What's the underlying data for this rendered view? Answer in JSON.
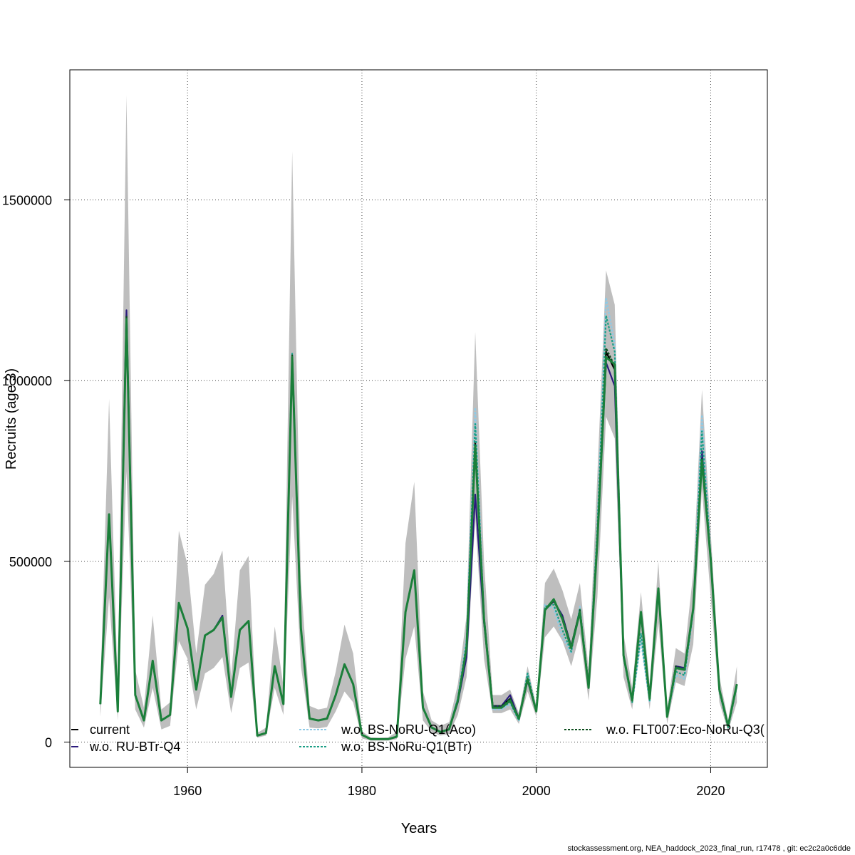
{
  "footer_text": "stockassessment.org, NEA_haddock_2023_final_run, r17478 , git: ec2c2a0c6dde",
  "chart_data": {
    "type": "line",
    "xlabel": "Years",
    "ylabel": "Recruits (age 3)",
    "xlim": [
      1946.5,
      2026.5
    ],
    "ylim": [
      -70000,
      1860000
    ],
    "xticks": [
      1960,
      1980,
      2000,
      2020
    ],
    "xtick_labels": [
      "1960",
      "1980",
      "2000",
      "2020"
    ],
    "yticks": [
      0,
      500000,
      1000000,
      1500000
    ],
    "ytick_labels": [
      "0",
      "500000",
      "1000000",
      "1500000"
    ],
    "grid": true,
    "legend_placement": "bottom",
    "x": [
      1950,
      1951,
      1952,
      1953,
      1954,
      1955,
      1956,
      1957,
      1958,
      1959,
      1960,
      1961,
      1962,
      1963,
      1964,
      1965,
      1966,
      1967,
      1968,
      1969,
      1970,
      1971,
      1972,
      1973,
      1974,
      1975,
      1976,
      1977,
      1978,
      1979,
      1980,
      1981,
      1982,
      1983,
      1984,
      1985,
      1986,
      1987,
      1988,
      1989,
      1990,
      1991,
      1992,
      1993,
      1994,
      1995,
      1996,
      1997,
      1998,
      1999,
      2000,
      2001,
      2002,
      2003,
      2004,
      2005,
      2006,
      2007,
      2008,
      2009,
      2010,
      2011,
      2012,
      2013,
      2014,
      2015,
      2016,
      2017,
      2018,
      2019,
      2020,
      2021,
      2022,
      2023
    ],
    "confidence_band": {
      "color": "#bebebe",
      "lower": [
        70000,
        400000,
        60000,
        750000,
        90000,
        40000,
        150000,
        35000,
        45000,
        280000,
        230000,
        90000,
        190000,
        205000,
        235000,
        80000,
        205000,
        220000,
        12000,
        18000,
        150000,
        75000,
        680000,
        210000,
        40000,
        38000,
        42000,
        85000,
        140000,
        110000,
        10000,
        4000,
        4000,
        4000,
        8000,
        230000,
        320000,
        60000,
        28000,
        18000,
        22000,
        75000,
        180000,
        620000,
        230000,
        80000,
        80000,
        90000,
        50000,
        140000,
        70000,
        290000,
        320000,
        280000,
        210000,
        300000,
        115000,
        400000,
        900000,
        840000,
        180000,
        90000,
        280000,
        90000,
        330000,
        50000,
        165000,
        155000,
        270000,
        700000,
        400000,
        110000,
        30000,
        110000
      ],
      "upper": [
        145000,
        950000,
        150000,
        1790000,
        200000,
        95000,
        350000,
        90000,
        110000,
        585000,
        490000,
        245000,
        435000,
        465000,
        530000,
        180000,
        475000,
        515000,
        25000,
        40000,
        320000,
        155000,
        1635000,
        450000,
        100000,
        90000,
        95000,
        195000,
        325000,
        245000,
        30000,
        13000,
        12000,
        13000,
        28000,
        550000,
        720000,
        140000,
        60000,
        45000,
        55000,
        160000,
        350000,
        1135000,
        500000,
        130000,
        130000,
        145000,
        80000,
        210000,
        100000,
        440000,
        480000,
        420000,
        340000,
        440000,
        200000,
        740000,
        1305000,
        1210000,
        300000,
        150000,
        415000,
        160000,
        500000,
        90000,
        260000,
        245000,
        470000,
        975000,
        580000,
        180000,
        60000,
        210000
      ]
    },
    "series": [
      {
        "name": "current",
        "color": "#000000",
        "dash": "solid",
        "values": [
          105000,
          630000,
          85000,
          1180000,
          130000,
          60000,
          225000,
          60000,
          75000,
          385000,
          315000,
          145000,
          295000,
          310000,
          345000,
          125000,
          310000,
          335000,
          18000,
          25000,
          210000,
          105000,
          1070000,
          315000,
          65000,
          60000,
          65000,
          130000,
          215000,
          160000,
          20000,
          8000,
          8000,
          8000,
          15000,
          360000,
          475000,
          95000,
          40000,
          28000,
          35000,
          115000,
          260000,
          830000,
          345000,
          100000,
          100000,
          120000,
          65000,
          175000,
          85000,
          365000,
          395000,
          340000,
          265000,
          365000,
          155000,
          560000,
          1080000,
          1030000,
          240000,
          115000,
          355000,
          120000,
          425000,
          70000,
          210000,
          200000,
          370000,
          790000,
          510000,
          145000,
          45000,
          160000
        ]
      },
      {
        "name": "w.o. RU-BTr-Q4",
        "color": "#2b1b7c",
        "dash": "solid",
        "values": [
          105000,
          630000,
          85000,
          1195000,
          130000,
          60000,
          225000,
          60000,
          75000,
          385000,
          315000,
          145000,
          295000,
          310000,
          350000,
          125000,
          310000,
          335000,
          18000,
          25000,
          210000,
          105000,
          1070000,
          315000,
          65000,
          60000,
          65000,
          130000,
          215000,
          160000,
          20000,
          8000,
          8000,
          8000,
          15000,
          360000,
          475000,
          95000,
          40000,
          28000,
          35000,
          110000,
          235000,
          685000,
          330000,
          100000,
          100000,
          130000,
          65000,
          170000,
          85000,
          365000,
          390000,
          350000,
          265000,
          360000,
          155000,
          555000,
          1050000,
          985000,
          235000,
          115000,
          355000,
          120000,
          425000,
          70000,
          210000,
          205000,
          370000,
          805000,
          505000,
          145000,
          45000,
          160000
        ]
      },
      {
        "name": "w.o. BS-NoRU-Q1(Aco)",
        "color": "#8ecae6",
        "dash": "dotted",
        "values": [
          105000,
          630000,
          85000,
          1175000,
          130000,
          60000,
          225000,
          60000,
          75000,
          385000,
          315000,
          145000,
          295000,
          310000,
          345000,
          125000,
          310000,
          335000,
          18000,
          25000,
          210000,
          105000,
          1075000,
          315000,
          65000,
          60000,
          65000,
          130000,
          215000,
          160000,
          20000,
          8000,
          8000,
          8000,
          15000,
          360000,
          475000,
          95000,
          40000,
          28000,
          35000,
          125000,
          290000,
          925000,
          350000,
          90000,
          90000,
          105000,
          60000,
          190000,
          85000,
          380000,
          370000,
          290000,
          245000,
          375000,
          150000,
          600000,
          1230000,
          1100000,
          235000,
          110000,
          280000,
          110000,
          420000,
          70000,
          185000,
          175000,
          360000,
          905000,
          510000,
          140000,
          40000,
          155000
        ]
      },
      {
        "name": "w.o. BS-NoRu-Q1(BTr)",
        "color": "#1a9e84",
        "dash": "dotted",
        "values": [
          105000,
          630000,
          85000,
          1175000,
          130000,
          60000,
          225000,
          60000,
          75000,
          385000,
          315000,
          145000,
          295000,
          310000,
          345000,
          125000,
          310000,
          335000,
          18000,
          25000,
          210000,
          105000,
          1075000,
          315000,
          65000,
          60000,
          65000,
          130000,
          215000,
          160000,
          20000,
          8000,
          8000,
          8000,
          15000,
          360000,
          475000,
          95000,
          40000,
          28000,
          35000,
          120000,
          275000,
          880000,
          345000,
          95000,
          95000,
          110000,
          60000,
          190000,
          85000,
          375000,
          380000,
          310000,
          250000,
          370000,
          150000,
          590000,
          1180000,
          1080000,
          235000,
          110000,
          300000,
          115000,
          420000,
          70000,
          195000,
          185000,
          365000,
          860000,
          510000,
          140000,
          40000,
          155000
        ]
      },
      {
        "name": "w.o. FLT007:Eco-NoRu-Q3(",
        "color": "#0b4d1c",
        "dash": "dotted",
        "values": [
          105000,
          630000,
          85000,
          1180000,
          130000,
          60000,
          225000,
          60000,
          75000,
          385000,
          315000,
          145000,
          295000,
          310000,
          345000,
          125000,
          310000,
          335000,
          18000,
          25000,
          210000,
          105000,
          1070000,
          315000,
          65000,
          60000,
          65000,
          130000,
          215000,
          160000,
          20000,
          8000,
          8000,
          8000,
          15000,
          360000,
          475000,
          95000,
          40000,
          28000,
          35000,
          115000,
          260000,
          825000,
          345000,
          100000,
          100000,
          120000,
          65000,
          175000,
          85000,
          365000,
          390000,
          345000,
          265000,
          365000,
          155000,
          560000,
          1090000,
          1040000,
          240000,
          115000,
          355000,
          120000,
          425000,
          70000,
          210000,
          200000,
          370000,
          785000,
          510000,
          145000,
          45000,
          160000
        ]
      },
      {
        "name": "",
        "color": "#1b7f3a",
        "dash": "solid",
        "values": [
          105000,
          630000,
          85000,
          1170000,
          130000,
          60000,
          225000,
          60000,
          75000,
          385000,
          315000,
          145000,
          295000,
          310000,
          345000,
          125000,
          310000,
          335000,
          18000,
          25000,
          210000,
          105000,
          1065000,
          315000,
          65000,
          60000,
          65000,
          130000,
          215000,
          160000,
          20000,
          8000,
          8000,
          8000,
          15000,
          360000,
          475000,
          95000,
          40000,
          28000,
          35000,
          115000,
          260000,
          820000,
          340000,
          95000,
          95000,
          115000,
          65000,
          175000,
          85000,
          365000,
          395000,
          340000,
          260000,
          360000,
          150000,
          555000,
          1065000,
          1045000,
          240000,
          115000,
          360000,
          120000,
          425000,
          70000,
          205000,
          200000,
          370000,
          780000,
          505000,
          145000,
          45000,
          160000
        ]
      }
    ],
    "legend": [
      {
        "label": "current",
        "color": "#000000",
        "dash": "solid"
      },
      {
        "label": "w.o. RU-BTr-Q4",
        "color": "#2b1b7c",
        "dash": "solid"
      },
      {
        "label": "w.o. BS-NoRU-Q1(Aco)",
        "color": "#8ecae6",
        "dash": "dotted"
      },
      {
        "label": "w.o. BS-NoRu-Q1(BTr)",
        "color": "#1a9e84",
        "dash": "dotted"
      },
      {
        "label": "w.o. FLT007:Eco-NoRu-Q3(",
        "color": "#0b4d1c",
        "dash": "dotted"
      }
    ]
  }
}
